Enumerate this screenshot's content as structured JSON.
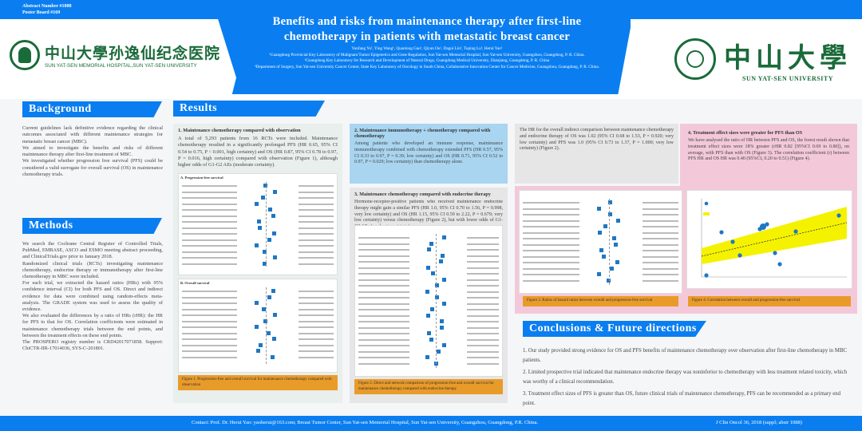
{
  "header": {
    "abstract_number": "Abstract Number #1088",
    "poster_board": "Poster Board #169",
    "title": "Benefits and risks from maintenance therapy after first-line chemotherapy in patients with metastatic breast cancer",
    "authors": "Yunfang Yu¹, Ying Wang¹, Quanlong Gao¹, Qiyun Ou¹, Dagui Lin², Tuping Lu³, Herui Yao¹",
    "affiliations": [
      "¹Guangdong Provincial Key Laboratory of Malignant Tumor Epigenetics and Gene Regulation, Sun Yat-sen Memorial Hospital, Sun Yat-sen University, Guangzhou, Guangdong, P. R. China.",
      "²Guangdong Key Laboratory for Research and Development of Natural Drugs, Guangdong Medical University, Zhanjiang, Guangdong, P. R. China",
      "³Department of Surgery, Sun Yat-sen University Cancer Center, State Key Laboratory of Oncology in South China, Collaborative Innovation Center for Cancer Medicine, Guangzhou, Guangdong, P. R. China."
    ],
    "left_logo_cn": "中山大學孙逸仙纪念医院",
    "left_logo_en": "SUN YAT-SEN MEMORIAL HOSPITAL,SUN YAT-SEN UNIVERSITY",
    "right_logo_cn": "中山大學",
    "right_logo_en": "SUN YAT-SEN UNIVERSITY"
  },
  "background": {
    "heading": "Background",
    "paragraphs": [
      "Current guidelines lack definitive evidence regarding the clinical outcomes associated with different maintenance strategies for metastatic breast cancer (MBC).",
      "We aimed to investigate the benefits and risks of different maintenance therapy after first-line treatment of MBC.",
      "We investigated whether progression free survival (PFS) could be considered a valid surrogate for overall survival (OS) in maintenance chemotherapy trials."
    ]
  },
  "methods": {
    "heading": "Methods",
    "paragraphs": [
      "We search the Cochrane Central Register of Controlled Trials, PubMed, EMBASE, ASCO and ESMO meeting abstract proceeding, and ClinicalTrials.gov prior to January 2018.",
      "Randomized clinical trials (RCTs) investigating maintenance chemotherapy, endocrine therapy or immunotherapy after first-line chemotherapy in MBC were included.",
      "For each trial, we extracted the hazard ratios (HRs) with 95% confidence interval (CI) for both PFS and OS. Direct and indirect evidence for data were combined using random-effects meta-analysis. The GRADE system was used to assess the quality of evidence.",
      "We also evaluated the differences by a ratio of HRs (rHR): the HR for PFS to that for OS. Correlation coefficients were estimated in maintenance chemotherapy trials between the end points, and between the treatment effects on these end points.",
      "The PROSPERO registry number is CRD42017071858. Support: ChiCTR-IIR-17014036, SYS-C-201801."
    ]
  },
  "results": {
    "heading": "Results",
    "s1": {
      "title": "1.  Maintenance chemotherapy compared with observation",
      "text": "A total of 5,293 patients from 16 RCTs were included. Maintenance chemotherapy resulted in a significantly prolonged PFS (HR 0.65, 95% CI 0.54 to 0.75, P < 0.001, high certainty) and OS (HR 0.87, 95% CI 0.78 to 0.97, P = 0.016, high certainty) compared with observation (Figure 1), although higher odds of G1-G2 AEs (moderate certainty).",
      "fig_a": "A. Progression-free survival",
      "fig_b": "B. Overall survival",
      "caption": "Figure 1. Progression-free and overall survival for maintenance chemotherapy compared with observation"
    },
    "s2": {
      "title": "2.  Maintenance immunotherapy + chemotherapy compared with chemotherapy",
      "text": "Among patients who developed an immune response, maintenance immunotherapy combined with chemotherapy extended PFS (HR 0.57, 95% CI 0.33 to 0.97, P = 0.39; low certainty) and OS (HR 0.71, 95% CI 0.52 to 0.97, P = 0.029; low certainty) than chemotherapy alone."
    },
    "s3": {
      "title": "3.  Maintenance chemotherapy compared with endocrine therapy",
      "text": "Hormone-receptor-positive patients who received maintenance endocrine therapy might gain a similar PFS (HR 1.0, 95% CI 0.70 to 1.56, P = 0.998, very low certainty) and OS (HR 1.15, 95% CI 0.59 to 2.22, P = 0.679; very low certainty) versus chemotherapy (Figure 2), but with lower odds of G1-G2 AEs (moderate certainty).",
      "text2": "The HR for the overall indirect comparison between maintenance chemotherapy and endocrine therapy of OS was 1.02 (95% CI 0.68 to 1.53, P = 0.920; very low certainty) and PFS was 1.0 (95% CI 0.73 to 1.37, P = 1.000; very low certainty) (Figure 2).",
      "caption": "Figure 2. Direct and network comparison of progression-free and overall survival for maintenance chemotherapy compared with endocrine therapy"
    },
    "s4": {
      "title": "4.  Treatment effect sizes were greater for PFS than OS",
      "text": "We have analysed the ratio of HR between PFS and OS, the forest result shown that treatment effect sizes were 18% greater (rHR 0.82 [95%CI 0.69 to 0.80]), on average, with PFS than with OS (Figure 3). The correlation coefficient (r) between PFS HR and OS HR was 0.40 (95%CI, 0.20 to 0.51) (Figure 4).",
      "caption3": "Figure 3. Ratios of hazard ratios between overall and progression-free survival",
      "caption4": "Figure 4. Correlation between overall and progression-free survival"
    }
  },
  "conclusions": {
    "heading": "Conclusions & Future directions",
    "items": [
      "1. Our study provided strong evidence for OS and PFS benefits of maintenance chemotherapy over observation after first-line chemotherapy in MBC patients.",
      "2. Limited prospective trial indicated that maintenance endocrine therapy was noninferior to chemotherapy with less treatment related toxicity, which was worthy of a clinical recommendation.",
      "3.  Treatment effect sizes of PFS is greater than OS, future clinical trials of maintenance chemotherapy, PFS can be recommended as a primary end point."
    ]
  },
  "footer": {
    "contact": "Contact: Prof. Dr. Herui Yao: yaoherui@163.com; Breast Tumor Center, Sun Yat-sen Memorial Hospital, Sun Yat-sen University, Guangzhou, Guangdong, P.R. China.",
    "citation": "J Clin Oncol 36, 2018 (suppl; abstr 1088)"
  },
  "colors": {
    "primary": "#0a7ef0",
    "caption": "#e99b2a",
    "pink": "#f3c9d9",
    "lightblue": "#a9d5f0",
    "forest_marker": "#1f77c4",
    "ci_band": "#f5f200"
  }
}
